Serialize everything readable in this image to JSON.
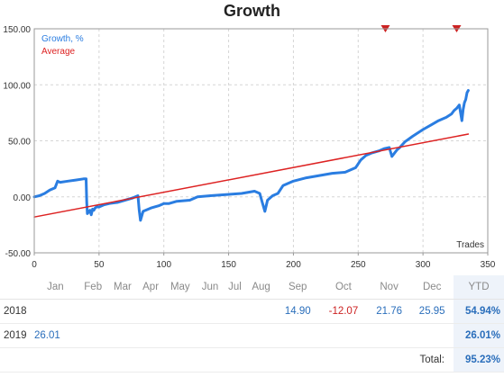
{
  "title": "Growth",
  "chart_data": {
    "type": "line",
    "xlim": [
      0,
      350
    ],
    "ylim": [
      -50,
      150
    ],
    "x_ticks": [
      "0",
      "50",
      "100",
      "150",
      "200",
      "250",
      "300",
      "350"
    ],
    "x_tick_values": [
      0,
      50,
      100,
      150,
      200,
      250,
      300,
      350
    ],
    "y_ticks": [
      "150.00",
      "100.00",
      "50.00",
      "0.00",
      "-50.00"
    ],
    "y_tick_values": [
      150,
      100,
      50,
      0,
      -50
    ],
    "xlabel": "Trades",
    "grid": true,
    "legend_placement": "top-left",
    "markers": {
      "type": "triangle-down",
      "x": [
        271,
        326
      ],
      "color": "#cc2222"
    },
    "series": [
      {
        "name": "Growth, %",
        "color": "#2a7de1",
        "x": [
          0,
          4,
          8,
          12,
          16,
          18,
          20,
          26,
          32,
          38,
          40,
          40.5,
          41,
          43,
          44,
          45,
          46,
          47,
          48,
          50,
          54,
          58,
          64,
          70,
          76,
          80,
          81,
          82,
          84,
          90,
          96,
          100,
          104,
          110,
          120,
          126,
          136,
          148,
          160,
          170,
          174,
          176,
          178,
          180,
          184,
          188,
          192,
          200,
          210,
          220,
          230,
          240,
          248,
          252,
          256,
          260,
          266,
          270,
          274,
          275,
          276,
          278,
          280,
          282,
          286,
          292,
          300,
          306,
          312,
          318,
          322,
          324,
          326,
          328,
          330,
          331,
          332,
          333,
          334,
          335
        ],
        "y": [
          0,
          1,
          3,
          6,
          8,
          14,
          13,
          14,
          15,
          16,
          16,
          -5,
          -15,
          -12,
          -16,
          -11,
          -12,
          -10,
          -9,
          -9,
          -7,
          -6,
          -5,
          -3,
          -1,
          1,
          -12,
          -21,
          -13,
          -10,
          -8,
          -6,
          -6,
          -4,
          -3,
          0,
          1,
          2,
          3,
          5,
          3,
          -5,
          -13,
          -3,
          1,
          3,
          10,
          14,
          17,
          19,
          21,
          22,
          26,
          33,
          37,
          39,
          41,
          43,
          44,
          40,
          36,
          39,
          42,
          44,
          49,
          54,
          60,
          64,
          68,
          71,
          74,
          77,
          79,
          82,
          68,
          78,
          84,
          87,
          93,
          95
        ]
      },
      {
        "name": "Average",
        "color": "#dd2222",
        "x": [
          0,
          335
        ],
        "y": [
          -18,
          56
        ]
      }
    ]
  },
  "monthly_table": {
    "months": [
      "Jan",
      "Feb",
      "Mar",
      "Apr",
      "May",
      "Jun",
      "Jul",
      "Aug",
      "Sep",
      "Oct",
      "Nov",
      "Dec"
    ],
    "ytd_label": "YTD",
    "rows": [
      {
        "year": "2018",
        "values": [
          "",
          "",
          "",
          "",
          "",
          "",
          "",
          "",
          "14.90",
          "-12.07",
          "21.76",
          "25.95"
        ],
        "ytd": "54.94%"
      },
      {
        "year": "2019",
        "values": [
          "26.01",
          "",
          "",
          "",
          "",
          "",
          "",
          "",
          "",
          "",
          "",
          ""
        ],
        "ytd": "26.01%"
      }
    ],
    "total_label": "Total:",
    "total_value": "95.23%"
  }
}
